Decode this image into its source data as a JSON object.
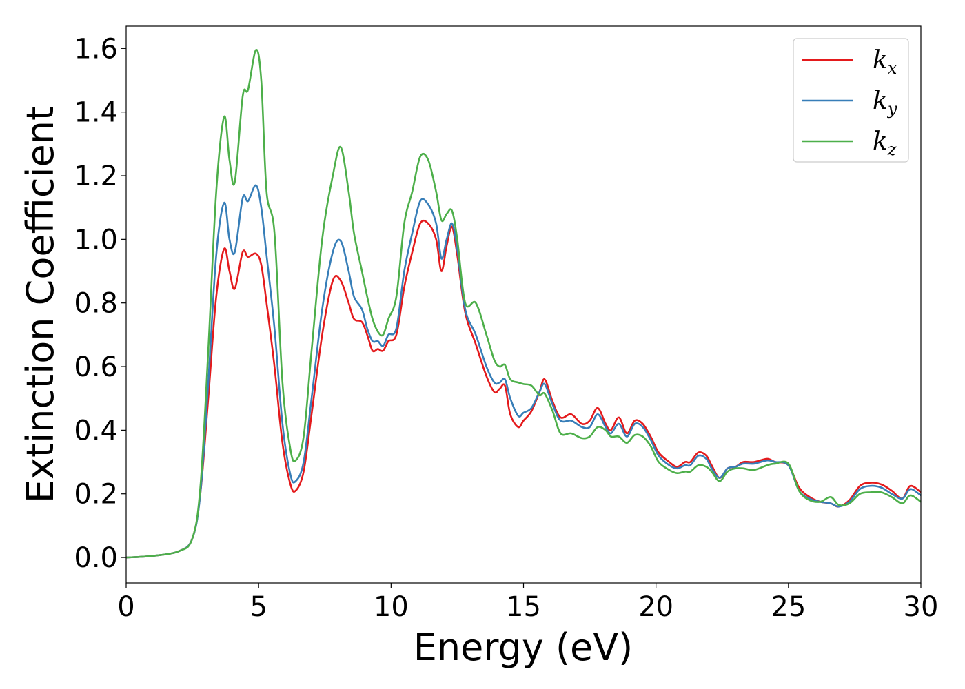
{
  "chart_data": {
    "type": "line",
    "xlabel": "Energy (eV)",
    "ylabel": "Extinction Coefficient",
    "xlim": [
      0,
      30
    ],
    "ylim": [
      -0.08,
      1.67
    ],
    "xticks": [
      0,
      5,
      10,
      15,
      20,
      25,
      30
    ],
    "xtick_labels": [
      "0",
      "5",
      "10",
      "15",
      "20",
      "25",
      "30"
    ],
    "yticks": [
      0.0,
      0.2,
      0.4,
      0.6,
      0.8,
      1.0,
      1.2,
      1.4,
      1.6
    ],
    "ytick_labels": [
      "0.0",
      "0.2",
      "0.4",
      "0.6",
      "0.8",
      "1.0",
      "1.2",
      "1.4",
      "1.6"
    ],
    "grid": false,
    "legend_position": "top-right",
    "series": [
      {
        "name": "k",
        "subscript": "x",
        "color": "#e41a1c",
        "points": [
          [
            0,
            0
          ],
          [
            1,
            0.005
          ],
          [
            2,
            0.02
          ],
          [
            2.5,
            0.06
          ],
          [
            2.8,
            0.2
          ],
          [
            3.1,
            0.5
          ],
          [
            3.4,
            0.82
          ],
          [
            3.7,
            0.97
          ],
          [
            3.9,
            0.9
          ],
          [
            4.1,
            0.845
          ],
          [
            4.4,
            0.96
          ],
          [
            4.6,
            0.945
          ],
          [
            4.9,
            0.955
          ],
          [
            5.1,
            0.92
          ],
          [
            5.3,
            0.8
          ],
          [
            5.6,
            0.6
          ],
          [
            5.9,
            0.36
          ],
          [
            6.2,
            0.23
          ],
          [
            6.4,
            0.21
          ],
          [
            6.7,
            0.27
          ],
          [
            7.0,
            0.45
          ],
          [
            7.4,
            0.7
          ],
          [
            7.8,
            0.87
          ],
          [
            8.1,
            0.87
          ],
          [
            8.4,
            0.8
          ],
          [
            8.6,
            0.75
          ],
          [
            8.9,
            0.74
          ],
          [
            9.1,
            0.7
          ],
          [
            9.3,
            0.65
          ],
          [
            9.5,
            0.655
          ],
          [
            9.7,
            0.65
          ],
          [
            9.9,
            0.68
          ],
          [
            10.2,
            0.7
          ],
          [
            10.5,
            0.85
          ],
          [
            10.8,
            0.96
          ],
          [
            11.1,
            1.05
          ],
          [
            11.4,
            1.05
          ],
          [
            11.7,
            1.0
          ],
          [
            11.9,
            0.9
          ],
          [
            12.1,
            0.98
          ],
          [
            12.3,
            1.04
          ],
          [
            12.5,
            0.95
          ],
          [
            12.8,
            0.77
          ],
          [
            13.2,
            0.67
          ],
          [
            13.6,
            0.57
          ],
          [
            13.9,
            0.52
          ],
          [
            14.1,
            0.53
          ],
          [
            14.3,
            0.54
          ],
          [
            14.5,
            0.45
          ],
          [
            14.8,
            0.41
          ],
          [
            15.0,
            0.43
          ],
          [
            15.3,
            0.46
          ],
          [
            15.6,
            0.52
          ],
          [
            15.8,
            0.56
          ],
          [
            16.1,
            0.49
          ],
          [
            16.4,
            0.44
          ],
          [
            16.8,
            0.45
          ],
          [
            17.2,
            0.42
          ],
          [
            17.5,
            0.43
          ],
          [
            17.8,
            0.47
          ],
          [
            18.1,
            0.42
          ],
          [
            18.3,
            0.4
          ],
          [
            18.6,
            0.44
          ],
          [
            18.9,
            0.39
          ],
          [
            19.2,
            0.43
          ],
          [
            19.5,
            0.42
          ],
          [
            19.8,
            0.38
          ],
          [
            20.1,
            0.33
          ],
          [
            20.5,
            0.3
          ],
          [
            20.8,
            0.285
          ],
          [
            21.1,
            0.3
          ],
          [
            21.3,
            0.3
          ],
          [
            21.6,
            0.33
          ],
          [
            21.9,
            0.32
          ],
          [
            22.1,
            0.29
          ],
          [
            22.4,
            0.25
          ],
          [
            22.7,
            0.28
          ],
          [
            23.0,
            0.285
          ],
          [
            23.3,
            0.3
          ],
          [
            23.7,
            0.3
          ],
          [
            24.2,
            0.31
          ],
          [
            24.5,
            0.3
          ],
          [
            25.0,
            0.29
          ],
          [
            25.4,
            0.22
          ],
          [
            25.8,
            0.19
          ],
          [
            26.2,
            0.175
          ],
          [
            26.6,
            0.17
          ],
          [
            26.9,
            0.16
          ],
          [
            27.3,
            0.18
          ],
          [
            27.7,
            0.225
          ],
          [
            28.1,
            0.235
          ],
          [
            28.5,
            0.23
          ],
          [
            28.9,
            0.21
          ],
          [
            29.3,
            0.185
          ],
          [
            29.6,
            0.225
          ],
          [
            30.0,
            0.205
          ]
        ]
      },
      {
        "name": "k",
        "subscript": "y",
        "color": "#377eb8",
        "points": [
          [
            0,
            0
          ],
          [
            1,
            0.005
          ],
          [
            2,
            0.02
          ],
          [
            2.5,
            0.06
          ],
          [
            2.8,
            0.2
          ],
          [
            3.1,
            0.55
          ],
          [
            3.4,
            0.95
          ],
          [
            3.7,
            1.115
          ],
          [
            3.9,
            1.0
          ],
          [
            4.1,
            0.96
          ],
          [
            4.4,
            1.13
          ],
          [
            4.6,
            1.12
          ],
          [
            4.9,
            1.17
          ],
          [
            5.1,
            1.1
          ],
          [
            5.3,
            0.95
          ],
          [
            5.6,
            0.72
          ],
          [
            5.9,
            0.42
          ],
          [
            6.2,
            0.26
          ],
          [
            6.4,
            0.24
          ],
          [
            6.7,
            0.3
          ],
          [
            7.0,
            0.5
          ],
          [
            7.4,
            0.78
          ],
          [
            7.8,
            0.96
          ],
          [
            8.1,
            0.995
          ],
          [
            8.4,
            0.9
          ],
          [
            8.6,
            0.82
          ],
          [
            8.9,
            0.78
          ],
          [
            9.1,
            0.72
          ],
          [
            9.3,
            0.68
          ],
          [
            9.5,
            0.68
          ],
          [
            9.7,
            0.665
          ],
          [
            9.9,
            0.7
          ],
          [
            10.2,
            0.72
          ],
          [
            10.5,
            0.9
          ],
          [
            10.8,
            1.02
          ],
          [
            11.1,
            1.12
          ],
          [
            11.4,
            1.11
          ],
          [
            11.7,
            1.05
          ],
          [
            11.9,
            0.94
          ],
          [
            12.1,
            1.0
          ],
          [
            12.3,
            1.05
          ],
          [
            12.5,
            0.97
          ],
          [
            12.8,
            0.78
          ],
          [
            13.2,
            0.7
          ],
          [
            13.6,
            0.6
          ],
          [
            13.9,
            0.55
          ],
          [
            14.1,
            0.55
          ],
          [
            14.3,
            0.56
          ],
          [
            14.5,
            0.5
          ],
          [
            14.8,
            0.445
          ],
          [
            15.0,
            0.455
          ],
          [
            15.3,
            0.47
          ],
          [
            15.6,
            0.52
          ],
          [
            15.8,
            0.545
          ],
          [
            16.1,
            0.48
          ],
          [
            16.4,
            0.43
          ],
          [
            16.8,
            0.43
          ],
          [
            17.2,
            0.41
          ],
          [
            17.5,
            0.41
          ],
          [
            17.8,
            0.45
          ],
          [
            18.1,
            0.41
          ],
          [
            18.3,
            0.39
          ],
          [
            18.6,
            0.42
          ],
          [
            18.9,
            0.38
          ],
          [
            19.2,
            0.42
          ],
          [
            19.5,
            0.41
          ],
          [
            19.8,
            0.37
          ],
          [
            20.1,
            0.32
          ],
          [
            20.5,
            0.29
          ],
          [
            20.8,
            0.28
          ],
          [
            21.1,
            0.29
          ],
          [
            21.3,
            0.29
          ],
          [
            21.6,
            0.32
          ],
          [
            21.9,
            0.31
          ],
          [
            22.1,
            0.28
          ],
          [
            22.4,
            0.25
          ],
          [
            22.7,
            0.28
          ],
          [
            23.0,
            0.285
          ],
          [
            23.3,
            0.295
          ],
          [
            23.7,
            0.295
          ],
          [
            24.2,
            0.305
          ],
          [
            24.5,
            0.3
          ],
          [
            25.0,
            0.29
          ],
          [
            25.4,
            0.21
          ],
          [
            25.8,
            0.185
          ],
          [
            26.2,
            0.175
          ],
          [
            26.6,
            0.17
          ],
          [
            26.9,
            0.16
          ],
          [
            27.3,
            0.175
          ],
          [
            27.7,
            0.215
          ],
          [
            28.1,
            0.225
          ],
          [
            28.5,
            0.22
          ],
          [
            28.9,
            0.2
          ],
          [
            29.3,
            0.185
          ],
          [
            29.6,
            0.215
          ],
          [
            30.0,
            0.195
          ]
        ]
      },
      {
        "name": "k",
        "subscript": "z",
        "color": "#4daf4a",
        "points": [
          [
            0,
            0
          ],
          [
            1,
            0.005
          ],
          [
            2,
            0.02
          ],
          [
            2.5,
            0.06
          ],
          [
            2.8,
            0.22
          ],
          [
            3.1,
            0.65
          ],
          [
            3.4,
            1.15
          ],
          [
            3.7,
            1.385
          ],
          [
            3.9,
            1.25
          ],
          [
            4.1,
            1.18
          ],
          [
            4.4,
            1.45
          ],
          [
            4.6,
            1.47
          ],
          [
            4.9,
            1.595
          ],
          [
            5.1,
            1.5
          ],
          [
            5.3,
            1.15
          ],
          [
            5.6,
            1.02
          ],
          [
            5.9,
            0.55
          ],
          [
            6.2,
            0.34
          ],
          [
            6.4,
            0.305
          ],
          [
            6.7,
            0.38
          ],
          [
            7.0,
            0.65
          ],
          [
            7.4,
            1.0
          ],
          [
            7.8,
            1.2
          ],
          [
            8.1,
            1.29
          ],
          [
            8.4,
            1.15
          ],
          [
            8.6,
            1.02
          ],
          [
            8.9,
            0.9
          ],
          [
            9.1,
            0.82
          ],
          [
            9.3,
            0.75
          ],
          [
            9.5,
            0.71
          ],
          [
            9.7,
            0.7
          ],
          [
            9.9,
            0.75
          ],
          [
            10.2,
            0.82
          ],
          [
            10.5,
            1.05
          ],
          [
            10.8,
            1.15
          ],
          [
            11.1,
            1.26
          ],
          [
            11.4,
            1.25
          ],
          [
            11.7,
            1.15
          ],
          [
            11.9,
            1.06
          ],
          [
            12.1,
            1.08
          ],
          [
            12.3,
            1.09
          ],
          [
            12.5,
            1.0
          ],
          [
            12.8,
            0.8
          ],
          [
            13.2,
            0.8
          ],
          [
            13.6,
            0.7
          ],
          [
            13.9,
            0.62
          ],
          [
            14.1,
            0.6
          ],
          [
            14.3,
            0.605
          ],
          [
            14.5,
            0.56
          ],
          [
            14.8,
            0.55
          ],
          [
            15.0,
            0.545
          ],
          [
            15.3,
            0.54
          ],
          [
            15.6,
            0.51
          ],
          [
            15.8,
            0.515
          ],
          [
            16.1,
            0.46
          ],
          [
            16.4,
            0.39
          ],
          [
            16.8,
            0.39
          ],
          [
            17.2,
            0.375
          ],
          [
            17.5,
            0.38
          ],
          [
            17.8,
            0.41
          ],
          [
            18.1,
            0.4
          ],
          [
            18.3,
            0.38
          ],
          [
            18.6,
            0.38
          ],
          [
            18.9,
            0.36
          ],
          [
            19.2,
            0.385
          ],
          [
            19.5,
            0.38
          ],
          [
            19.8,
            0.35
          ],
          [
            20.1,
            0.3
          ],
          [
            20.5,
            0.275
          ],
          [
            20.8,
            0.265
          ],
          [
            21.1,
            0.27
          ],
          [
            21.3,
            0.27
          ],
          [
            21.6,
            0.29
          ],
          [
            21.9,
            0.285
          ],
          [
            22.1,
            0.27
          ],
          [
            22.4,
            0.24
          ],
          [
            22.7,
            0.27
          ],
          [
            23.0,
            0.28
          ],
          [
            23.3,
            0.28
          ],
          [
            23.7,
            0.275
          ],
          [
            24.2,
            0.29
          ],
          [
            24.5,
            0.295
          ],
          [
            25.0,
            0.295
          ],
          [
            25.4,
            0.21
          ],
          [
            25.8,
            0.18
          ],
          [
            26.2,
            0.175
          ],
          [
            26.6,
            0.19
          ],
          [
            26.9,
            0.165
          ],
          [
            27.3,
            0.17
          ],
          [
            27.7,
            0.2
          ],
          [
            28.1,
            0.205
          ],
          [
            28.5,
            0.205
          ],
          [
            28.9,
            0.19
          ],
          [
            29.3,
            0.17
          ],
          [
            29.6,
            0.195
          ],
          [
            30.0,
            0.175
          ]
        ]
      }
    ]
  }
}
